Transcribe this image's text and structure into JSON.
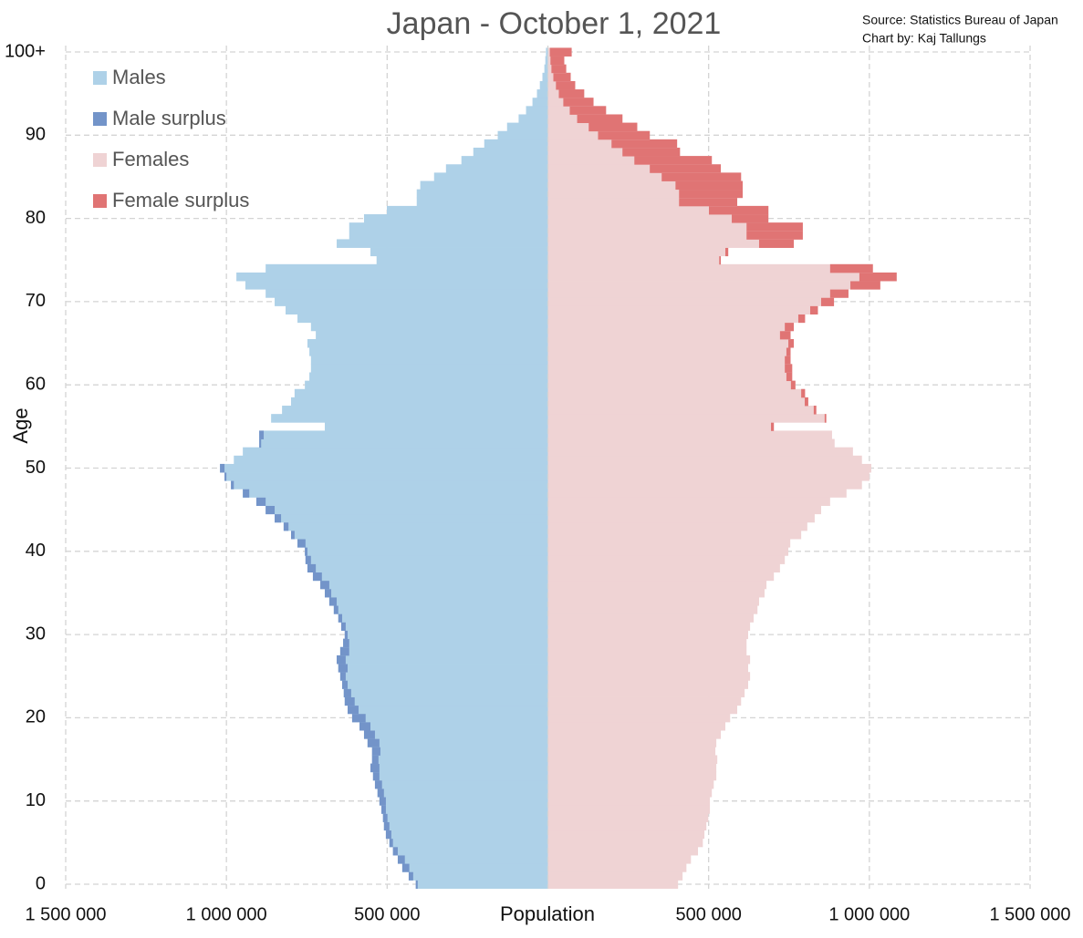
{
  "chart_data": {
    "type": "population-pyramid",
    "title": "Japan - October 1, 2021",
    "source": "Source: Statistics Bureau of Japan",
    "credit": "Chart by: Kaj Tallungs",
    "x_label": "Population",
    "y_label": "Age",
    "grid": true,
    "legend": "upper left",
    "xlim": [
      -1500000,
      1500000
    ],
    "xticks": [
      {
        "value": -1500000,
        "label": "1 500 000"
      },
      {
        "value": -1000000,
        "label": "1 000 000"
      },
      {
        "value": -500000,
        "label": "500 000"
      },
      {
        "value": 500000,
        "label": "500 000"
      },
      {
        "value": 1000000,
        "label": "1 000 000"
      },
      {
        "value": 1500000,
        "label": "1 500 000"
      }
    ],
    "ylim": [
      0,
      100
    ],
    "yticks": [
      0,
      10,
      20,
      30,
      40,
      50,
      60,
      70,
      80,
      90,
      {
        "value": 100,
        "label": "100+"
      }
    ],
    "ages": [
      0,
      1,
      2,
      3,
      4,
      5,
      6,
      7,
      8,
      9,
      10,
      11,
      12,
      13,
      14,
      15,
      16,
      17,
      18,
      19,
      20,
      21,
      22,
      23,
      24,
      25,
      26,
      27,
      28,
      29,
      30,
      31,
      32,
      33,
      34,
      35,
      36,
      37,
      38,
      39,
      40,
      41,
      42,
      43,
      44,
      45,
      46,
      47,
      48,
      49,
      50,
      51,
      52,
      53,
      54,
      55,
      56,
      57,
      58,
      59,
      60,
      61,
      62,
      63,
      64,
      65,
      66,
      67,
      68,
      69,
      70,
      71,
      72,
      73,
      74,
      75,
      76,
      77,
      78,
      79,
      80,
      81,
      82,
      83,
      84,
      85,
      86,
      87,
      88,
      89,
      90,
      91,
      92,
      93,
      94,
      95,
      96,
      97,
      98,
      99,
      100
    ],
    "series": [
      {
        "name": "Males",
        "color": "#aed1e8",
        "side": "left",
        "surplus_name": "Male surplus",
        "surplus_color": "#7394c9",
        "values": [
          411000,
          433000,
          453000,
          467000,
          482000,
          493000,
          504000,
          510000,
          513000,
          518000,
          524000,
          530000,
          538000,
          544000,
          552000,
          547000,
          547000,
          561000,
          572000,
          586000,
          609000,
          623000,
          632000,
          635000,
          640000,
          646000,
          652000,
          657000,
          646000,
          637000,
          632000,
          643000,
          652000,
          666000,
          680000,
          694000,
          708000,
          731000,
          748000,
          754000,
          756000,
          779000,
          799000,
          822000,
          850000,
          878000,
          907000,
          949000,
          986000,
          1006000,
          1020000,
          977000,
          949000,
          898000,
          898000,
          694000,
          861000,
          827000,
          799000,
          788000,
          756000,
          742000,
          737000,
          737000,
          742000,
          748000,
          722000,
          737000,
          779000,
          816000,
          850000,
          878000,
          941000,
          969000,
          878000,
          533000,
          552000,
          657000,
          618000,
          618000,
          572000,
          501000,
          408000,
          408000,
          397000,
          354000,
          317000,
          269000,
          232000,
          198000,
          156000,
          127000,
          91000,
          68000,
          48000,
          34000,
          25000,
          17000,
          11000,
          8000,
          6000
        ]
      },
      {
        "name": "Females",
        "color": "#efd3d4",
        "side": "right",
        "surplus_name": "Female surplus",
        "surplus_color": "#e07474",
        "values": [
          405000,
          419000,
          431000,
          445000,
          467000,
          482000,
          487000,
          493000,
          499000,
          504000,
          504000,
          510000,
          516000,
          524000,
          524000,
          527000,
          521000,
          524000,
          538000,
          552000,
          567000,
          589000,
          601000,
          612000,
          623000,
          629000,
          623000,
          629000,
          618000,
          618000,
          623000,
          629000,
          640000,
          652000,
          657000,
          674000,
          680000,
          703000,
          722000,
          737000,
          748000,
          754000,
          788000,
          807000,
          830000,
          850000,
          878000,
          929000,
          977000,
          1000000,
          1006000,
          977000,
          949000,
          892000,
          884000,
          703000,
          866000,
          835000,
          810000,
          800000,
          770000,
          760000,
          760000,
          755000,
          755000,
          765000,
          755000,
          765000,
          800000,
          840000,
          890000,
          935000,
          1034000,
          1085000,
          1011000,
          538000,
          561000,
          765000,
          793000,
          793000,
          686000,
          686000,
          589000,
          606000,
          606000,
          601000,
          538000,
          510000,
          411000,
          402000,
          317000,
          278000,
          232000,
          181000,
          142000,
          113000,
          85000,
          71000,
          57000,
          51000,
          74000
        ]
      }
    ]
  }
}
